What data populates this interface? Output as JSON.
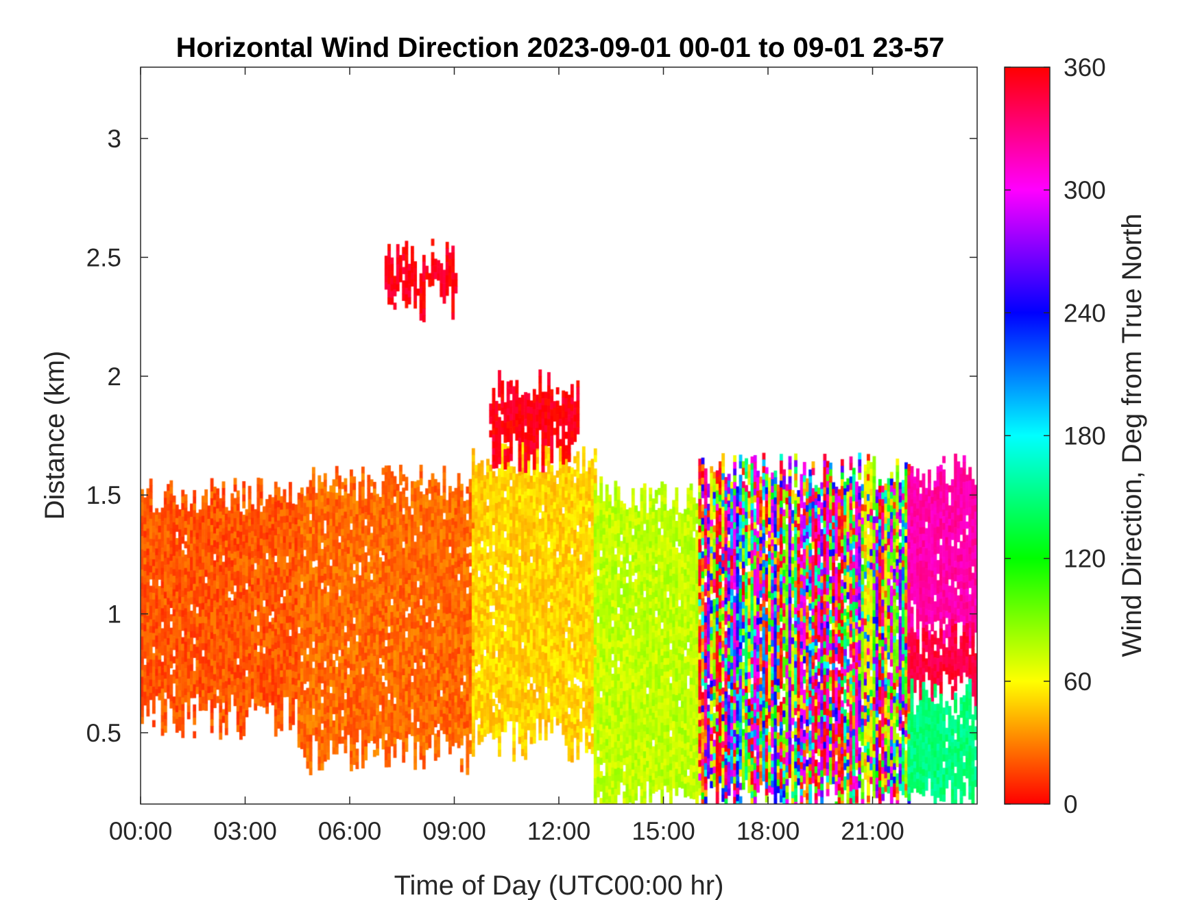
{
  "chart_data": {
    "type": "heatmap",
    "title": "Horizontal Wind Direction 2023-09-01 00-01 to 09-01 23-57",
    "xlabel": "Time of Day (UTC00:00 hr)",
    "ylabel": "Distance (km)",
    "colorbar_label": "Wind Direction, Deg from True North",
    "x_unit": "hours",
    "xlim": [
      0,
      24
    ],
    "ylim": [
      0.2,
      3.3
    ],
    "x_ticks": [
      0,
      3,
      6,
      9,
      12,
      15,
      18,
      21
    ],
    "x_tick_labels": [
      "00:00",
      "03:00",
      "06:00",
      "09:00",
      "12:00",
      "15:00",
      "18:00",
      "21:00"
    ],
    "y_ticks": [
      0.5,
      1,
      1.5,
      2,
      2.5,
      3
    ],
    "y_tick_labels": [
      "0.5",
      "1",
      "1.5",
      "2",
      "2.5",
      "3"
    ],
    "colorbar": {
      "min": 0,
      "max": 360,
      "ticks": [
        0,
        60,
        120,
        180,
        240,
        300,
        360
      ],
      "tick_labels": [
        "0",
        "60",
        "120",
        "180",
        "240",
        "300",
        "360"
      ],
      "colormap": "hsv",
      "color_stops": [
        "#ff0000",
        "#ffff00",
        "#00ff00",
        "#00ffff",
        "#0000ff",
        "#ff00ff",
        "#ff0000"
      ]
    },
    "grid": false,
    "regions": [
      {
        "time_range": [
          0,
          4.5
        ],
        "height_range": [
          0.55,
          1.5
        ],
        "direction_deg": 20
      },
      {
        "time_range": [
          4.5,
          9.5
        ],
        "height_range": [
          0.4,
          1.55
        ],
        "direction_deg": 25
      },
      {
        "time_range": [
          9.5,
          13
        ],
        "height_range": [
          0.45,
          1.65
        ],
        "direction_deg": 50
      },
      {
        "time_range": [
          10,
          12.5
        ],
        "height_range": [
          1.65,
          1.95
        ],
        "direction_deg": 355
      },
      {
        "time_range": [
          7,
          9
        ],
        "height_range": [
          2.3,
          2.5
        ],
        "direction_deg": 355
      },
      {
        "time_range": [
          13,
          16
        ],
        "height_range": [
          0.2,
          1.5
        ],
        "direction_deg": 75
      },
      {
        "time_range": [
          16,
          22
        ],
        "height_range": [
          0.2,
          1.6
        ],
        "direction_deg": "variable 0-360"
      },
      {
        "time_range": [
          22,
          24
        ],
        "height_range": [
          0.9,
          1.6
        ],
        "direction_deg": 320
      },
      {
        "time_range": [
          22,
          24
        ],
        "height_range": [
          0.65,
          0.9
        ],
        "direction_deg": 345
      },
      {
        "time_range": [
          22,
          24
        ],
        "height_range": [
          0.2,
          0.65
        ],
        "direction_deg": 150
      }
    ]
  }
}
